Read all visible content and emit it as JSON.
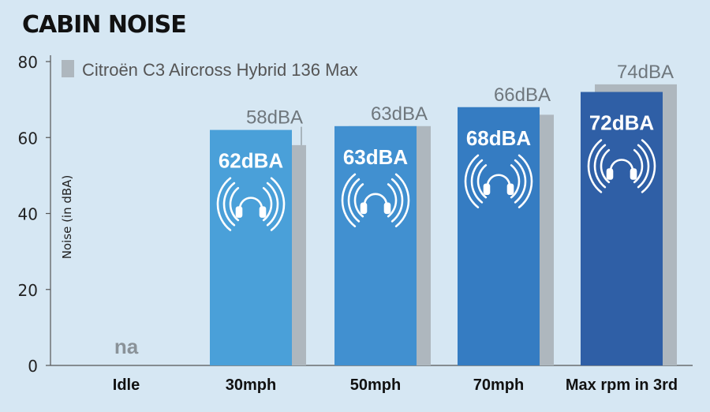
{
  "chart_data": {
    "type": "bar",
    "title": "CABIN NOISE",
    "ylabel": "Noise (in dBA)",
    "xlabel": "",
    "ylim": [
      0,
      80
    ],
    "yticks": [
      0,
      20,
      40,
      60,
      80
    ],
    "grid": false,
    "legend_position": "top-left",
    "categories": [
      "Idle",
      "30mph",
      "50mph",
      "70mph",
      "Max rpm in 3rd"
    ],
    "series": [
      {
        "name": "",
        "values": [
          null,
          62,
          63,
          68,
          72
        ],
        "labels": [
          "na",
          "62dBA",
          "63dBA",
          "68dBA",
          "72dBA"
        ],
        "colors": [
          "#4aa0d9",
          "#4aa0d9",
          "#4190d0",
          "#357cc2",
          "#2f5fa6"
        ]
      },
      {
        "name": "Citroën C3 Aircross Hybrid 136 Max",
        "values": [
          null,
          58,
          63,
          66,
          74
        ],
        "labels": [
          "",
          "58dBA",
          "63dBA",
          "66dBA",
          "74dBA"
        ],
        "color": "#aeb7be"
      }
    ],
    "icon": "headphones-sound-icon"
  }
}
